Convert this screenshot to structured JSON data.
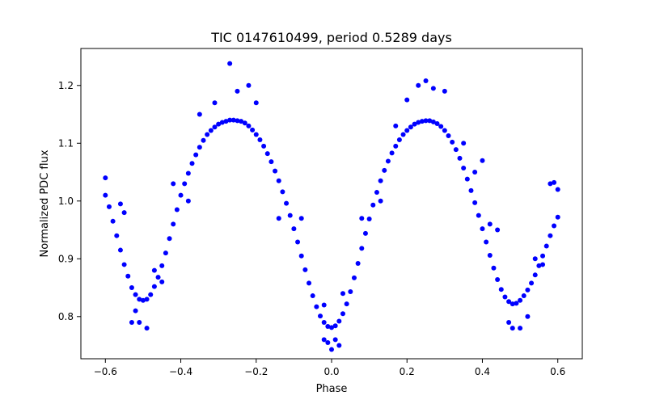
{
  "chart_data": {
    "type": "scatter",
    "title": "TIC 0147610499, period 0.5289 days",
    "xlabel": "Phase",
    "ylabel": "Normalized PDC flux",
    "xlim": [
      -0.665,
      0.665
    ],
    "ylim": [
      0.727,
      1.264
    ],
    "xticks": [
      -0.6,
      -0.4,
      -0.2,
      0.0,
      0.2,
      0.4,
      0.6
    ],
    "xtick_labels": [
      "−0.6",
      "−0.4",
      "−0.2",
      "0.0",
      "0.2",
      "0.4",
      "0.6"
    ],
    "yticks": [
      0.8,
      0.9,
      1.0,
      1.1,
      1.2
    ],
    "ytick_labels": [
      "0.8",
      "0.9",
      "1.0",
      "1.1",
      "1.2"
    ],
    "grid": false,
    "legend": false,
    "marker_color": "#0000ff",
    "series": [
      {
        "points": [
          [
            -0.6,
            1.01
          ],
          [
            -0.59,
            0.99
          ],
          [
            -0.58,
            0.965
          ],
          [
            -0.57,
            0.94
          ],
          [
            -0.56,
            0.915
          ],
          [
            -0.55,
            0.89
          ],
          [
            -0.54,
            0.87
          ],
          [
            -0.53,
            0.85
          ],
          [
            -0.52,
            0.838
          ],
          [
            -0.51,
            0.83
          ],
          [
            -0.5,
            0.828
          ],
          [
            -0.49,
            0.83
          ],
          [
            -0.48,
            0.838
          ],
          [
            -0.47,
            0.852
          ],
          [
            -0.46,
            0.868
          ],
          [
            -0.45,
            0.888
          ],
          [
            -0.44,
            0.91
          ],
          [
            -0.43,
            0.935
          ],
          [
            -0.42,
            0.96
          ],
          [
            -0.41,
            0.985
          ],
          [
            -0.4,
            1.01
          ],
          [
            -0.39,
            1.03
          ],
          [
            -0.38,
            1.048
          ],
          [
            -0.37,
            1.065
          ],
          [
            -0.36,
            1.08
          ],
          [
            -0.35,
            1.093
          ],
          [
            -0.34,
            1.105
          ],
          [
            -0.33,
            1.115
          ],
          [
            -0.32,
            1.122
          ],
          [
            -0.31,
            1.128
          ],
          [
            -0.3,
            1.133
          ],
          [
            -0.29,
            1.136
          ],
          [
            -0.28,
            1.138
          ],
          [
            -0.27,
            1.14
          ],
          [
            -0.26,
            1.14
          ],
          [
            -0.25,
            1.139
          ],
          [
            -0.24,
            1.138
          ],
          [
            -0.23,
            1.135
          ],
          [
            -0.22,
            1.13
          ],
          [
            -0.21,
            1.123
          ],
          [
            -0.2,
            1.115
          ],
          [
            -0.19,
            1.106
          ],
          [
            -0.18,
            1.095
          ],
          [
            -0.17,
            1.082
          ],
          [
            -0.16,
            1.068
          ],
          [
            -0.15,
            1.052
          ],
          [
            -0.14,
            1.035
          ],
          [
            -0.13,
            1.016
          ],
          [
            -0.12,
            0.996
          ],
          [
            -0.11,
            0.975
          ],
          [
            -0.1,
            0.952
          ],
          [
            -0.09,
            0.929
          ],
          [
            -0.08,
            0.905
          ],
          [
            -0.07,
            0.881
          ],
          [
            -0.06,
            0.858
          ],
          [
            -0.05,
            0.836
          ],
          [
            -0.04,
            0.817
          ],
          [
            -0.03,
            0.801
          ],
          [
            -0.02,
            0.79
          ],
          [
            -0.01,
            0.783
          ],
          [
            0.0,
            0.781
          ],
          [
            0.01,
            0.784
          ],
          [
            0.02,
            0.792
          ],
          [
            0.03,
            0.805
          ],
          [
            0.04,
            0.822
          ],
          [
            0.05,
            0.843
          ],
          [
            0.06,
            0.867
          ],
          [
            0.07,
            0.892
          ],
          [
            0.08,
            0.918
          ],
          [
            0.09,
            0.944
          ],
          [
            0.1,
            0.969
          ],
          [
            0.11,
            0.993
          ],
          [
            0.12,
            1.015
          ],
          [
            0.13,
            1.035
          ],
          [
            0.14,
            1.053
          ],
          [
            0.15,
            1.069
          ],
          [
            0.16,
            1.083
          ],
          [
            0.17,
            1.095
          ],
          [
            0.18,
            1.106
          ],
          [
            0.19,
            1.115
          ],
          [
            0.2,
            1.122
          ],
          [
            0.21,
            1.128
          ],
          [
            0.22,
            1.133
          ],
          [
            0.23,
            1.136
          ],
          [
            0.24,
            1.138
          ],
          [
            0.25,
            1.139
          ],
          [
            0.26,
            1.139
          ],
          [
            0.27,
            1.137
          ],
          [
            0.28,
            1.134
          ],
          [
            0.29,
            1.129
          ],
          [
            0.3,
            1.122
          ],
          [
            0.31,
            1.113
          ],
          [
            0.32,
            1.102
          ],
          [
            0.33,
            1.089
          ],
          [
            0.34,
            1.074
          ],
          [
            0.35,
            1.057
          ],
          [
            0.36,
            1.038
          ],
          [
            0.37,
            1.018
          ],
          [
            0.38,
            0.997
          ],
          [
            0.39,
            0.975
          ],
          [
            0.4,
            0.952
          ],
          [
            0.41,
            0.929
          ],
          [
            0.42,
            0.906
          ],
          [
            0.43,
            0.884
          ],
          [
            0.44,
            0.864
          ],
          [
            0.45,
            0.847
          ],
          [
            0.46,
            0.834
          ],
          [
            0.47,
            0.826
          ],
          [
            0.48,
            0.822
          ],
          [
            0.49,
            0.823
          ],
          [
            0.5,
            0.828
          ],
          [
            0.51,
            0.836
          ],
          [
            0.52,
            0.846
          ],
          [
            0.53,
            0.858
          ],
          [
            0.54,
            0.872
          ],
          [
            0.55,
            0.888
          ],
          [
            0.56,
            0.905
          ],
          [
            0.57,
            0.922
          ],
          [
            0.58,
            0.94
          ],
          [
            0.59,
            0.957
          ],
          [
            0.6,
            0.972
          ],
          [
            -0.27,
            1.238
          ],
          [
            -0.22,
            1.2
          ],
          [
            -0.25,
            1.19
          ],
          [
            -0.31,
            1.17
          ],
          [
            0.25,
            1.208
          ],
          [
            0.23,
            1.2
          ],
          [
            0.27,
            1.195
          ],
          [
            0.3,
            1.19
          ],
          [
            0.2,
            1.175
          ],
          [
            -0.6,
            1.04
          ],
          [
            -0.56,
            0.995
          ],
          [
            -0.55,
            0.98
          ],
          [
            0.59,
            1.032
          ],
          [
            0.58,
            1.03
          ],
          [
            0.6,
            1.02
          ],
          [
            -0.53,
            0.79
          ],
          [
            -0.51,
            0.79
          ],
          [
            -0.49,
            0.78
          ],
          [
            -0.52,
            0.81
          ],
          [
            0.48,
            0.78
          ],
          [
            0.5,
            0.78
          ],
          [
            0.47,
            0.79
          ],
          [
            0.52,
            0.8
          ],
          [
            0.0,
            0.743
          ],
          [
            -0.01,
            0.755
          ],
          [
            0.02,
            0.75
          ],
          [
            -0.02,
            0.76
          ],
          [
            0.01,
            0.76
          ],
          [
            -0.47,
            0.88
          ],
          [
            -0.45,
            0.86
          ],
          [
            0.44,
            0.95
          ],
          [
            0.42,
            0.96
          ],
          [
            0.54,
            0.9
          ],
          [
            0.56,
            0.89
          ],
          [
            -0.02,
            0.82
          ],
          [
            0.03,
            0.84
          ],
          [
            -0.08,
            0.97
          ],
          [
            0.08,
            0.97
          ],
          [
            -0.14,
            0.97
          ],
          [
            0.13,
            1.0
          ],
          [
            -0.38,
            1.0
          ],
          [
            0.4,
            1.07
          ],
          [
            -0.35,
            1.15
          ],
          [
            0.35,
            1.1
          ],
          [
            -0.2,
            1.17
          ],
          [
            0.17,
            1.13
          ],
          [
            -0.42,
            1.03
          ],
          [
            0.38,
            1.05
          ]
        ]
      }
    ]
  }
}
